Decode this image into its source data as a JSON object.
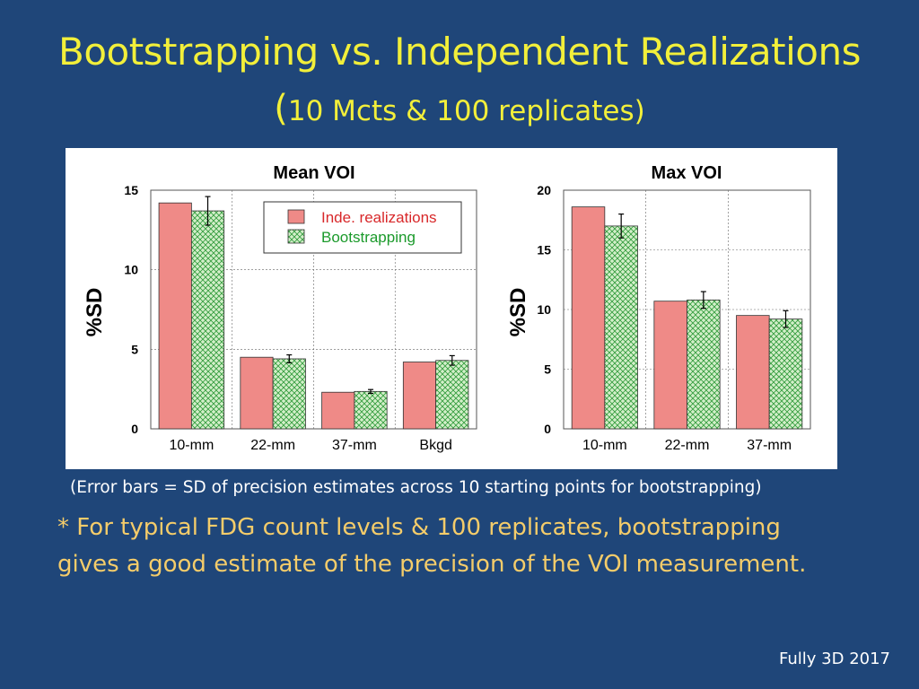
{
  "slide": {
    "title": "Bootstrapping vs. Independent Realizations",
    "subtitle_open": "(",
    "subtitle_text": "10 Mcts & 100 replicates)",
    "note": "(Error bars = SD of precision estimates across 10 starting points for bootstrapping)",
    "bullet_line1": "* For typical FDG count levels & 100 replicates, bootstrapping",
    "bullet_line2": "gives a good estimate of the precision of the VOI measurement.",
    "footer": "Fully 3D 2017"
  },
  "colors": {
    "background": "#1f4679",
    "title": "#f2ef3a",
    "bullet": "#f4cc6a",
    "inde_fill": "#ef8a87",
    "boot_fill": "#d3efc9",
    "boot_hatch": "#2f9a3a",
    "legend_inde_text": "#d8282a",
    "legend_boot_text": "#1b9a2b"
  },
  "legend": {
    "inde": "Inde. realizations",
    "boot": "Bootstrapping"
  },
  "chart_data": [
    {
      "type": "bar",
      "title": "Mean VOI",
      "ylabel": "%SD",
      "xlabel": "",
      "ylim": [
        0,
        15
      ],
      "yticks": [
        0,
        5,
        10,
        15
      ],
      "categories": [
        "10-mm",
        "22-mm",
        "37-mm",
        "Bkgd"
      ],
      "grid": true,
      "legend_position": "top-right",
      "series": [
        {
          "name": "Inde. realizations",
          "values": [
            14.2,
            4.5,
            2.3,
            4.2
          ]
        },
        {
          "name": "Bootstrapping",
          "values": [
            13.7,
            4.4,
            2.35,
            4.3
          ],
          "errors": [
            0.9,
            0.25,
            0.12,
            0.3
          ]
        }
      ]
    },
    {
      "type": "bar",
      "title": "Max VOI",
      "ylabel": "%SD",
      "xlabel": "",
      "ylim": [
        0,
        20
      ],
      "yticks": [
        0,
        5,
        10,
        15,
        20
      ],
      "categories": [
        "10-mm",
        "22-mm",
        "37-mm"
      ],
      "grid": true,
      "series": [
        {
          "name": "Inde. realizations",
          "values": [
            18.6,
            10.7,
            9.5
          ]
        },
        {
          "name": "Bootstrapping",
          "values": [
            17.0,
            10.8,
            9.2
          ],
          "errors": [
            1.0,
            0.7,
            0.7
          ]
        }
      ]
    }
  ]
}
